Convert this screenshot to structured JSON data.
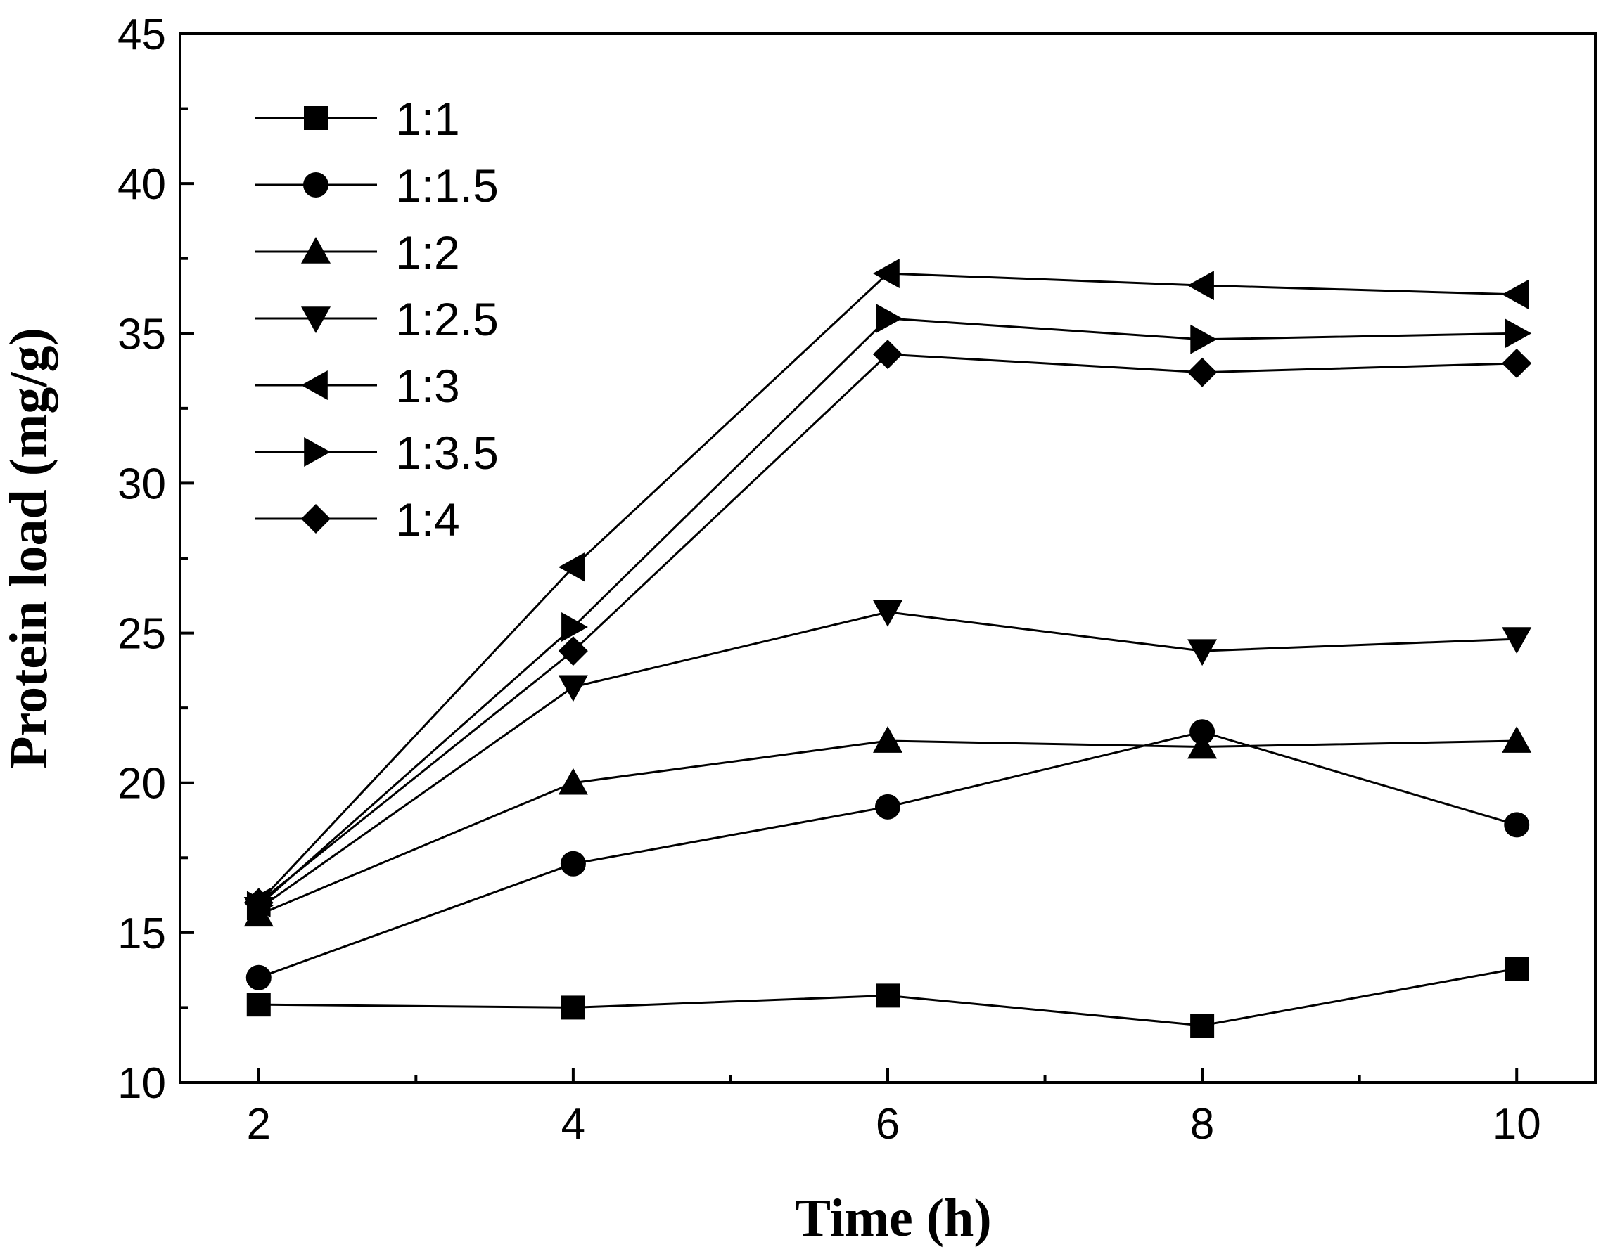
{
  "chart_data": {
    "type": "line",
    "title": "",
    "xlabel": "Time (h)",
    "ylabel": "Protein load (mg/g)",
    "xlim": [
      1.5,
      10.5
    ],
    "ylim": [
      10,
      45
    ],
    "xticks": [
      2,
      4,
      6,
      8,
      10
    ],
    "yticks": [
      10,
      15,
      20,
      25,
      30,
      35,
      40,
      45
    ],
    "x": [
      2,
      4,
      6,
      8,
      10
    ],
    "legend_position": "top-left",
    "grid": false,
    "series": [
      {
        "name": "1:1",
        "marker": "square",
        "values": [
          12.6,
          12.5,
          12.9,
          11.9,
          13.8
        ]
      },
      {
        "name": "1:1.5",
        "marker": "circle",
        "values": [
          13.5,
          17.3,
          19.2,
          21.7,
          18.6
        ]
      },
      {
        "name": "1:2",
        "marker": "triangle-up",
        "values": [
          15.6,
          20.0,
          21.4,
          21.2,
          21.4
        ]
      },
      {
        "name": "1:2.5",
        "marker": "triangle-down",
        "values": [
          15.8,
          23.2,
          25.7,
          24.4,
          24.8
        ]
      },
      {
        "name": "1:3",
        "marker": "triangle-left",
        "values": [
          16.0,
          27.2,
          37.0,
          36.6,
          36.3
        ]
      },
      {
        "name": "1:3.5",
        "marker": "triangle-right",
        "values": [
          15.9,
          25.2,
          35.5,
          34.8,
          35.0
        ]
      },
      {
        "name": "1:4",
        "marker": "diamond",
        "values": [
          16.0,
          24.4,
          34.3,
          33.7,
          34.0
        ]
      }
    ]
  }
}
